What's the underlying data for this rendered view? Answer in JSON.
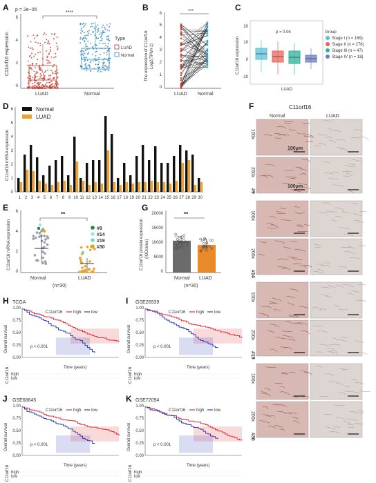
{
  "panels": {
    "A": {
      "label": "A",
      "p": "p = 2e−05",
      "sig": "****",
      "ylabel": "C11orf16 expression",
      "categories": [
        "LUAD",
        "Normal"
      ],
      "legend_title": "Type",
      "legend_items": [
        "LUAD",
        "Normal"
      ],
      "yticks": [
        "0",
        "2",
        "4",
        "6"
      ],
      "colors": {
        "luad": "#c0392b",
        "normal": "#2e86c1"
      }
    },
    "B": {
      "label": "B",
      "sig": "***",
      "ylabel1": "The expression of C11orf16",
      "ylabel2": "Log2(TPM+1)",
      "categories": [
        "LUAD",
        "Normal"
      ],
      "yticks": [
        "0",
        "1",
        "2",
        "3",
        "4",
        "5",
        "6"
      ]
    },
    "C": {
      "label": "C",
      "p": "p = 0.04",
      "ylabel": "C11orf16 expression",
      "xlabel": "LUAD",
      "yticks": [
        "20",
        "10",
        "0",
        "-10"
      ],
      "legend_title": "Group",
      "legend_items": [
        {
          "label": "Stage I (n = 169)",
          "color": "#5bc0de"
        },
        {
          "label": "Stage II (n = 276)",
          "color": "#e8645a"
        },
        {
          "label": "Stage III (n = 47)",
          "color": "#2bb39a"
        },
        {
          "label": "Stage IV (n = 18)",
          "color": "#6a7fc1"
        }
      ]
    },
    "D": {
      "label": "D",
      "ylabel": "C11orf16 mRNA expression",
      "legend": [
        "Normal",
        "LUAD"
      ],
      "colors": {
        "normal": "#111111",
        "luad": "#f0a030"
      },
      "yticks": [
        "0",
        "1",
        "2",
        "3",
        "4",
        "5",
        "6"
      ]
    },
    "E": {
      "label": "E",
      "ylabel": "C11orf16 mRNA expression",
      "sig": "**",
      "categories": [
        "Normal",
        "LUAD"
      ],
      "n": "(n=30)",
      "yticks": [
        "0",
        "2",
        "4",
        "6"
      ],
      "legend": [
        {
          "label": "#9",
          "color": "#1e8449"
        },
        {
          "label": "#14",
          "color": "#a3e4d7"
        },
        {
          "label": "#19",
          "color": "#76d7c4"
        },
        {
          "label": "#30",
          "color": "#d4ac0d"
        }
      ]
    },
    "G": {
      "label": "G",
      "ylabel1": "C11orf16 protein expression",
      "ylabel2": "(IOD/area)",
      "sig": "**",
      "categories": [
        "Normal",
        "LUAD"
      ],
      "n": "(n=30)",
      "yticks": [
        "0",
        "5000",
        "10000",
        "15000",
        "20000"
      ]
    },
    "F": {
      "label": "F",
      "title": "C11orf16",
      "col_normal": "Normal",
      "col_luad": "LUAD",
      "scale": "100μm",
      "groups": [
        {
          "id": "#9",
          "rows": [
            "100x",
            "200x"
          ]
        },
        {
          "id": "#14",
          "rows": [
            "100x",
            "200x"
          ]
        },
        {
          "id": "#19",
          "rows": [
            "100x",
            "200x"
          ]
        },
        {
          "id": "#30",
          "rows": [
            "100x",
            "200x"
          ]
        }
      ]
    },
    "H": {
      "label": "H",
      "dataset": "TCGA"
    },
    "I": {
      "label": "I",
      "dataset": "GSE26939"
    },
    "J": {
      "label": "J",
      "dataset": "GSE68645"
    },
    "K": {
      "label": "K",
      "dataset": "GSE72094"
    },
    "km_common": {
      "legend_title": "C11orf16",
      "legend_high": "high",
      "legend_low": "low",
      "ylabel": "Overall survival",
      "xlabel": "Time (years)",
      "p": "p < 0.001",
      "yticks": [
        "0.00",
        "0.25",
        "0.50",
        "0.75",
        "1.00"
      ],
      "risk_label": "C11orf16",
      "risk_high": "high",
      "risk_low": "low",
      "high_color": "#e0303a",
      "low_color": "#2b3dbf"
    }
  },
  "chart_data": [
    {
      "type": "bar",
      "title": "",
      "ylabel": "C11orf16 mRNA expression",
      "categories": [
        "1",
        "2",
        "3",
        "4",
        "5",
        "6",
        "7",
        "8",
        "9",
        "10",
        "11",
        "12",
        "13",
        "14",
        "15",
        "16",
        "17",
        "18",
        "19",
        "20",
        "21",
        "22",
        "23",
        "24",
        "25",
        "26",
        "27",
        "28",
        "29",
        "30"
      ],
      "series": [
        {
          "name": "Normal",
          "values": [
            1.0,
            2.7,
            3.4,
            2.5,
            1.2,
            1.9,
            2.3,
            2.6,
            1.2,
            4.0,
            1.0,
            2.1,
            2.3,
            2.3,
            5.5,
            4.2,
            1.0,
            2.1,
            1.2,
            2.6,
            3.4,
            2.3,
            3.3,
            2.1,
            2.1,
            2.6,
            3.4,
            3.0,
            2.7,
            1.0
          ],
          "color": "#111111"
        },
        {
          "name": "LUAD",
          "values": [
            0.7,
            1.6,
            1.5,
            0.8,
            0.6,
            0.5,
            0.7,
            0.8,
            0.5,
            2.2,
            0.8,
            0.5,
            0.7,
            0.6,
            3.0,
            0.7,
            0.5,
            0.7,
            0.6,
            0.7,
            0.7,
            0.8,
            0.7,
            0.7,
            0.6,
            0.8,
            2.1,
            2.3,
            0.5,
            0.7
          ],
          "color": "#f0a030"
        }
      ],
      "ylim": [
        0,
        6
      ]
    },
    {
      "type": "bar",
      "ylabel": "C11orf16 protein expression (IOD/area)",
      "categories": [
        "Normal",
        "LUAD"
      ],
      "values": [
        11000,
        9500
      ],
      "ylim": [
        0,
        20000
      ]
    }
  ]
}
